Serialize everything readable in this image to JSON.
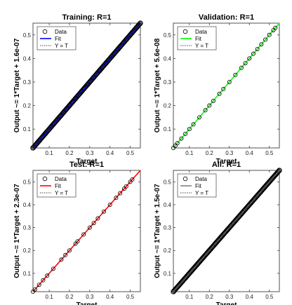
{
  "chart_data": [
    {
      "type": "scatter",
      "title": "Training: R=1",
      "xlabel": "Target",
      "ylabel": "Output ~= 1*Target + 1.6e-07",
      "xlim": [
        0.02,
        0.55
      ],
      "ylim": [
        0.02,
        0.55
      ],
      "xticks": [
        "0.1",
        "0.2",
        "0.3",
        "0.4",
        "0.5"
      ],
      "yticks": [
        "0.1",
        "0.2",
        "0.3",
        "0.4",
        "0.5"
      ],
      "fit_color": "#0000ff",
      "legend_position": "top-left",
      "legend": [
        "Data",
        "Fit",
        "Y = T"
      ],
      "density": "dense",
      "x": [
        0.02,
        0.05,
        0.08,
        0.11,
        0.14,
        0.17,
        0.2,
        0.23,
        0.26,
        0.29,
        0.32,
        0.35,
        0.38,
        0.41,
        0.44,
        0.47,
        0.5,
        0.53,
        0.55
      ],
      "y": [
        0.02,
        0.05,
        0.08,
        0.11,
        0.14,
        0.17,
        0.2,
        0.23,
        0.26,
        0.29,
        0.32,
        0.35,
        0.38,
        0.41,
        0.44,
        0.47,
        0.5,
        0.53,
        0.55
      ]
    },
    {
      "type": "scatter",
      "title": "Validation: R=1",
      "xlabel": "Target",
      "ylabel": "Output ~= 1*Target + 5.6e-08",
      "xlim": [
        0.02,
        0.55
      ],
      "ylim": [
        0.02,
        0.55
      ],
      "xticks": [
        "0.1",
        "0.2",
        "0.3",
        "0.4",
        "0.5"
      ],
      "yticks": [
        "0.1",
        "0.2",
        "0.3",
        "0.4",
        "0.5"
      ],
      "fit_color": "#00ff00",
      "legend_position": "top-left",
      "legend": [
        "Data",
        "Fit",
        "Y = T"
      ],
      "density": "sparse",
      "x": [
        0.02,
        0.03,
        0.04,
        0.06,
        0.08,
        0.1,
        0.12,
        0.15,
        0.18,
        0.2,
        0.22,
        0.25,
        0.27,
        0.3,
        0.33,
        0.36,
        0.38,
        0.4,
        0.42,
        0.44,
        0.46,
        0.48,
        0.5,
        0.52,
        0.53
      ],
      "y": [
        0.02,
        0.03,
        0.04,
        0.06,
        0.08,
        0.1,
        0.12,
        0.15,
        0.18,
        0.2,
        0.22,
        0.25,
        0.27,
        0.3,
        0.33,
        0.36,
        0.38,
        0.4,
        0.42,
        0.44,
        0.46,
        0.48,
        0.5,
        0.52,
        0.53
      ]
    },
    {
      "type": "scatter",
      "title": "Test: R=1",
      "xlabel": "Target",
      "ylabel": "Output ~= 1*Target + 2.3e-07",
      "xlim": [
        0.02,
        0.55
      ],
      "ylim": [
        0.02,
        0.55
      ],
      "xticks": [
        "0.1",
        "0.2",
        "0.3",
        "0.4",
        "0.5"
      ],
      "yticks": [
        "0.1",
        "0.2",
        "0.3",
        "0.4",
        "0.5"
      ],
      "fit_color": "#ff0000",
      "legend_position": "top-left",
      "legend": [
        "Data",
        "Fit",
        "Y = T"
      ],
      "density": "sparse",
      "x": [
        0.02,
        0.03,
        0.05,
        0.07,
        0.09,
        0.12,
        0.16,
        0.18,
        0.2,
        0.23,
        0.24,
        0.27,
        0.3,
        0.32,
        0.34,
        0.37,
        0.4,
        0.43,
        0.45,
        0.47,
        0.48,
        0.5,
        0.51
      ],
      "y": [
        0.02,
        0.03,
        0.05,
        0.07,
        0.09,
        0.12,
        0.16,
        0.18,
        0.2,
        0.23,
        0.24,
        0.27,
        0.3,
        0.32,
        0.34,
        0.37,
        0.4,
        0.43,
        0.45,
        0.47,
        0.48,
        0.5,
        0.51
      ]
    },
    {
      "type": "scatter",
      "title": "All: R=1",
      "xlabel": "Target",
      "ylabel": "Output ~= 1*Target + 1.5e-07",
      "xlim": [
        0.02,
        0.55
      ],
      "ylim": [
        0.02,
        0.55
      ],
      "xticks": [
        "0.1",
        "0.2",
        "0.3",
        "0.4",
        "0.5"
      ],
      "yticks": [
        "0.1",
        "0.2",
        "0.3",
        "0.4",
        "0.5"
      ],
      "fit_color": "#808080",
      "legend_position": "top-left",
      "legend": [
        "Data",
        "Fit",
        "Y = T"
      ],
      "density": "dense",
      "x": [
        0.02,
        0.05,
        0.08,
        0.11,
        0.14,
        0.17,
        0.2,
        0.23,
        0.26,
        0.29,
        0.32,
        0.35,
        0.38,
        0.41,
        0.44,
        0.47,
        0.5,
        0.53,
        0.55
      ],
      "y": [
        0.02,
        0.05,
        0.08,
        0.11,
        0.14,
        0.17,
        0.2,
        0.23,
        0.26,
        0.29,
        0.32,
        0.35,
        0.38,
        0.41,
        0.44,
        0.47,
        0.5,
        0.53,
        0.55
      ]
    }
  ]
}
